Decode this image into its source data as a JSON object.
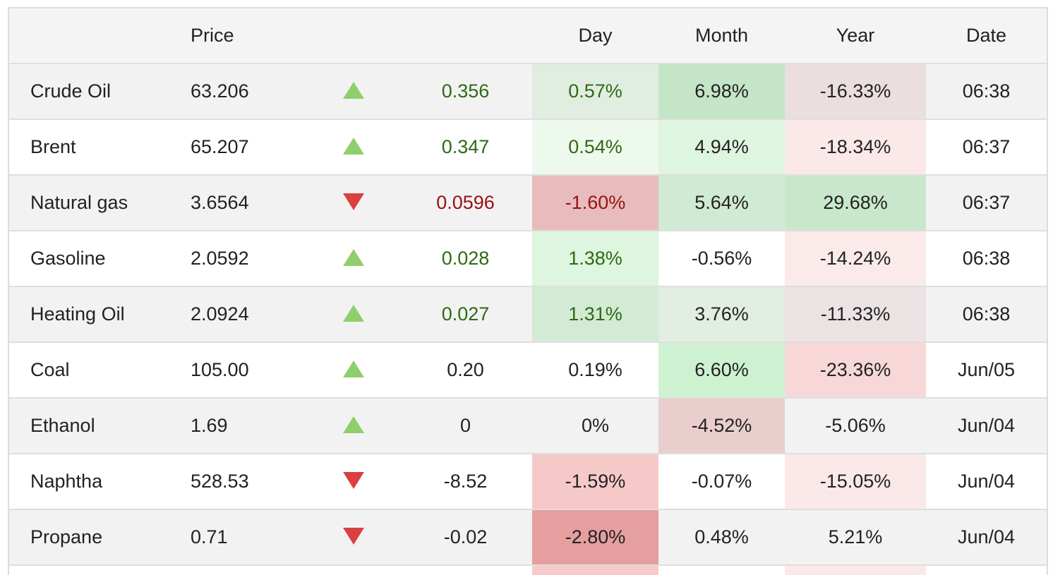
{
  "headers": {
    "name": "",
    "price": "Price",
    "arrow": "",
    "change": "",
    "day": "Day",
    "month": "Month",
    "year": "Year",
    "date": "Date"
  },
  "colors": {
    "up_text": "#2e6a14",
    "down_text": "#9a1010",
    "arrow_up": "#8fce6c",
    "arrow_down": "#d9403f"
  },
  "rows": [
    {
      "name": "Crude Oil",
      "price": "63.206",
      "direction": "up",
      "change": "0.356",
      "change_color": "up",
      "day": "0.57%",
      "day_color": "up",
      "day_bg": "#e1ede1",
      "month": "6.98%",
      "month_bg": "#c4e6c6",
      "year": "-16.33%",
      "year_bg": "#eadede",
      "date": "06:38"
    },
    {
      "name": "Brent",
      "price": "65.207",
      "direction": "up",
      "change": "0.347",
      "change_color": "up",
      "day": "0.54%",
      "day_color": "up",
      "day_bg": "#eef9ee",
      "month": "4.94%",
      "month_bg": "#def5e0",
      "year": "-18.34%",
      "year_bg": "#fbe9e9",
      "date": "06:37"
    },
    {
      "name": "Natural gas",
      "price": "3.6564",
      "direction": "down",
      "change": "0.0596",
      "change_color": "down",
      "day": "-1.60%",
      "day_color": "down",
      "day_bg": "#e8bcbc",
      "month": "5.64%",
      "month_bg": "#d1ead3",
      "year": "29.68%",
      "year_bg": "#c9e8cb",
      "date": "06:37"
    },
    {
      "name": "Gasoline",
      "price": "2.0592",
      "direction": "up",
      "change": "0.028",
      "change_color": "up",
      "day": "1.38%",
      "day_color": "up",
      "day_bg": "#def5df",
      "month": "-0.56%",
      "month_bg": "",
      "year": "-14.24%",
      "year_bg": "#fbeaea",
      "date": "06:38"
    },
    {
      "name": "Heating Oil",
      "price": "2.0924",
      "direction": "up",
      "change": "0.027",
      "change_color": "up",
      "day": "1.31%",
      "day_color": "up",
      "day_bg": "#d3ead5",
      "month": "3.76%",
      "month_bg": "#e2eee2",
      "year": "-11.33%",
      "year_bg": "#ebe3e3",
      "date": "06:38"
    },
    {
      "name": "Coal",
      "price": "105.00",
      "direction": "up",
      "change": "0.20",
      "change_color": "neutral",
      "day": "0.19%",
      "day_color": "neutral",
      "day_bg": "",
      "month": "6.60%",
      "month_bg": "#cef2d1",
      "year": "-23.36%",
      "year_bg": "#f7d7d8",
      "date": "Jun/05"
    },
    {
      "name": "Ethanol",
      "price": "1.69",
      "direction": "up",
      "change": "0",
      "change_color": "neutral",
      "day": "0%",
      "day_color": "neutral",
      "day_bg": "",
      "month": "-4.52%",
      "month_bg": "#eacece",
      "year": "-5.06%",
      "year_bg": "",
      "date": "Jun/04"
    },
    {
      "name": "Naphtha",
      "price": "528.53",
      "direction": "down",
      "change": "-8.52",
      "change_color": "neutral",
      "day": "-1.59%",
      "day_color": "neutral",
      "day_bg": "#f6c9c9",
      "month": "-0.07%",
      "month_bg": "",
      "year": "-15.05%",
      "year_bg": "#fbe9e9",
      "date": "Jun/04"
    },
    {
      "name": "Propane",
      "price": "0.71",
      "direction": "down",
      "change": "-0.02",
      "change_color": "neutral",
      "day": "-2.80%",
      "day_color": "neutral",
      "day_bg": "#e59f9f",
      "month": "0.48%",
      "month_bg": "",
      "year": "5.21%",
      "year_bg": "",
      "date": "Jun/04"
    }
  ],
  "partial_row": {
    "day_bg": "#f6caca",
    "year_bg": "#fbe9e9"
  }
}
